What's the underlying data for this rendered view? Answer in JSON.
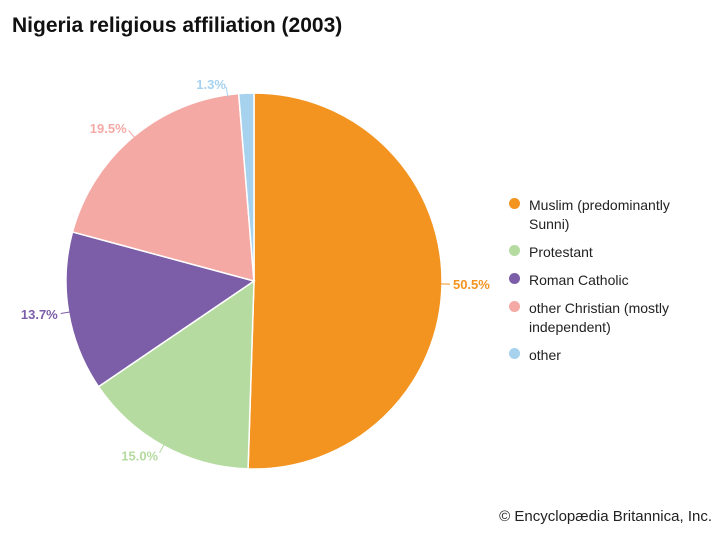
{
  "chart_data": {
    "type": "pie",
    "title": "Nigeria religious affiliation (2003)",
    "slices": [
      {
        "label": "Muslim (predominantly Sunni)",
        "value": 50.5,
        "value_label": "50.5%",
        "color": "#F39420"
      },
      {
        "label": "Protestant",
        "value": 15.0,
        "value_label": "15.0%",
        "color": "#B5DBA0"
      },
      {
        "label": "Roman Catholic",
        "value": 13.7,
        "value_label": "13.7%",
        "color": "#7B5EA7"
      },
      {
        "label": "other Christian (mostly independent)",
        "value": 19.5,
        "value_label": "19.5%",
        "color": "#F4A9A5"
      },
      {
        "label": "other",
        "value": 1.3,
        "value_label": "1.3%",
        "color": "#A6D2EE"
      }
    ],
    "start": "top",
    "direction": "clockwise",
    "legend_position": "right"
  },
  "credit": "© Encyclopædia Britannica, Inc."
}
